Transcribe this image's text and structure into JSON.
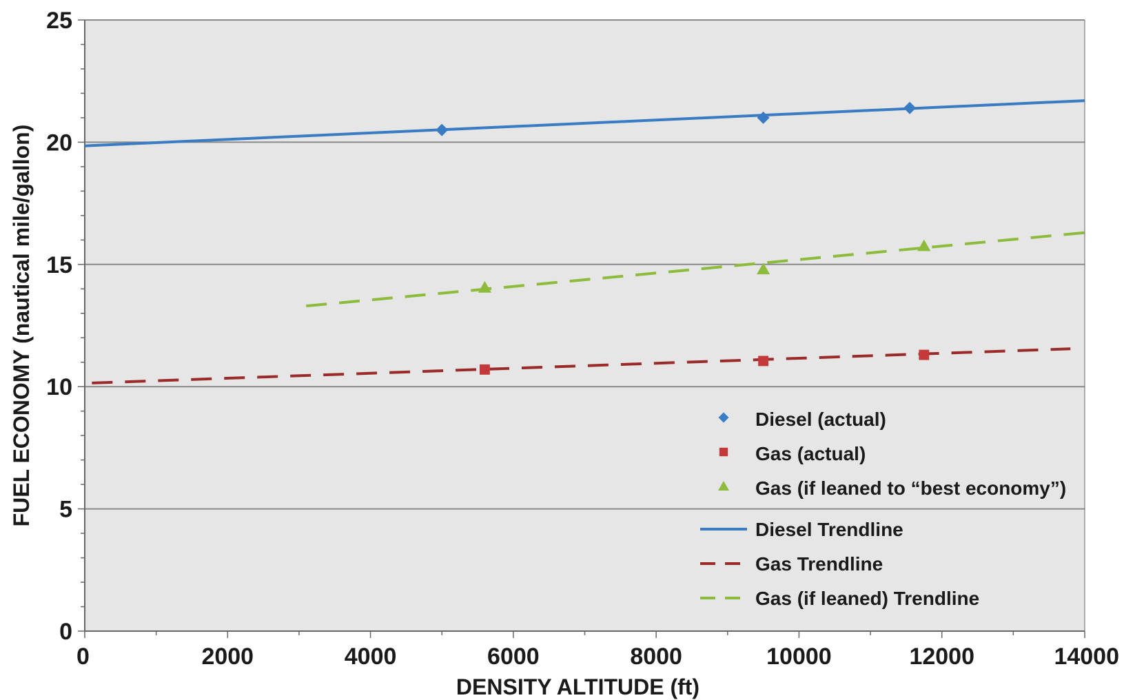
{
  "chart_data": {
    "type": "scatter",
    "xlabel": "DENSITY ALTITUDE (ft)",
    "ylabel": "FUEL ECONOMY (nautical mile/gallon)",
    "xlim": [
      0,
      14000
    ],
    "ylim": [
      0,
      25
    ],
    "x_ticks": [
      0,
      2000,
      4000,
      6000,
      8000,
      10000,
      12000,
      14000
    ],
    "y_ticks": [
      0,
      5,
      10,
      15,
      20,
      25
    ],
    "grid": "horizontal",
    "legend_position": "bottom-right inside",
    "series": [
      {
        "name": "Diesel (actual)",
        "marker": "diamond",
        "color": "#3a7cc4",
        "points": [
          {
            "x": 5000,
            "y": 20.5
          },
          {
            "x": 9500,
            "y": 21.0
          },
          {
            "x": 11550,
            "y": 21.4
          }
        ]
      },
      {
        "name": "Gas (actual)",
        "marker": "square",
        "color": "#c43a3a",
        "points": [
          {
            "x": 5600,
            "y": 10.7
          },
          {
            "x": 9500,
            "y": 11.05
          },
          {
            "x": 11750,
            "y": 11.3
          }
        ]
      },
      {
        "name": "Gas (if leaned to “best economy”)",
        "marker": "triangle",
        "color": "#8dbb3c",
        "points": [
          {
            "x": 5600,
            "y": 14.05
          },
          {
            "x": 9500,
            "y": 14.8
          },
          {
            "x": 11750,
            "y": 15.75
          }
        ]
      }
    ],
    "trendlines": [
      {
        "name": "Diesel Trendline",
        "style": "solid",
        "color": "#3a7cc4",
        "from": {
          "x": 0,
          "y": 19.85
        },
        "to": {
          "x": 14000,
          "y": 21.7
        }
      },
      {
        "name": "Gas Trendline",
        "style": "dashed",
        "color": "#9b2a2a",
        "from": {
          "x": 100,
          "y": 10.15
        },
        "to": {
          "x": 13800,
          "y": 11.55
        }
      },
      {
        "name": "Gas (if leaned) Trendline",
        "style": "dashed",
        "color": "#8dbb3c",
        "from": {
          "x": 3100,
          "y": 13.3
        },
        "to": {
          "x": 14000,
          "y": 16.3
        }
      }
    ]
  },
  "colors": {
    "plot_background": "#e6e6e6",
    "gridline": "#8a8a8a",
    "axis": "#666666"
  }
}
